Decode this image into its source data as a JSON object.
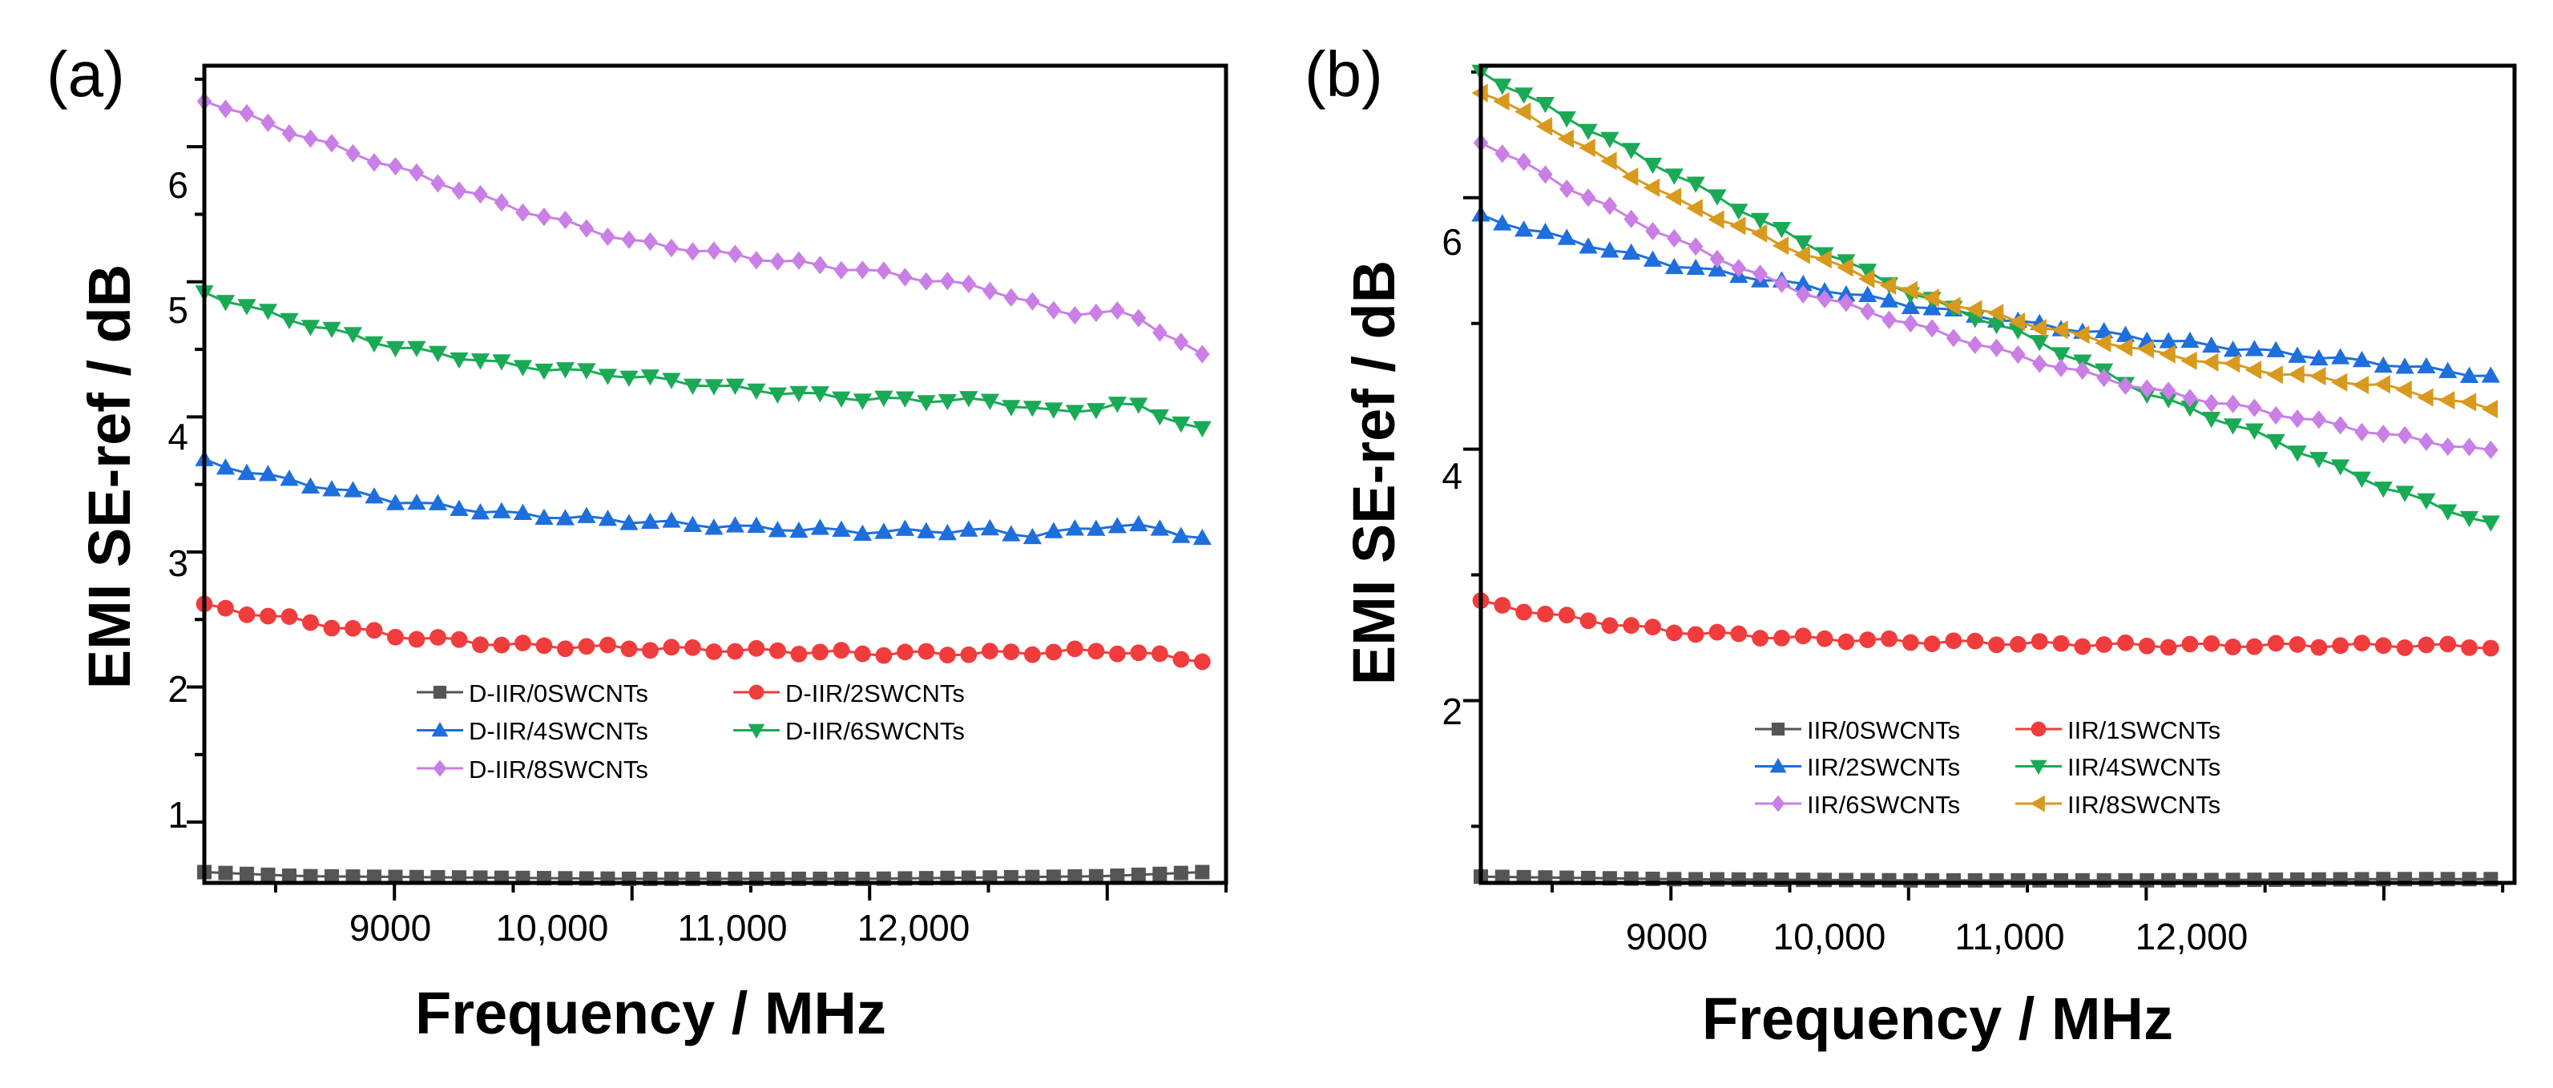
{
  "chart_data": [
    {
      "type": "line",
      "panel_label": "(a)",
      "xlabel": "Frequency / MHz",
      "ylabel": "EMI SE-ref / dB",
      "xlim": [
        8200,
        12500
      ],
      "ylim": [
        0.55,
        6.6
      ],
      "x_ticks": [
        9000,
        10000,
        11000,
        12000
      ],
      "x_tick_labels": [
        "9000",
        "10,000",
        "11,000",
        "12,000"
      ],
      "y_ticks": [
        1,
        2,
        3,
        4,
        5,
        6
      ],
      "y_tick_labels": [
        "1",
        "2",
        "3",
        "4",
        "5",
        "6"
      ],
      "x_range": [
        8200,
        12400
      ],
      "n_points": 48,
      "legend_position": "bottom-left",
      "series": [
        {
          "name": "D-IIR/0SWCNTs",
          "color": "#555555",
          "marker": "square",
          "anchors": [
            [
              8200,
              0.63
            ],
            [
              8600,
              0.6
            ],
            [
              10000,
              0.58
            ],
            [
              11000,
              0.58
            ],
            [
              12000,
              0.6
            ],
            [
              12400,
              0.63
            ]
          ]
        },
        {
          "name": "D-IIR/2SWCNTs",
          "color": "#f03c3c",
          "marker": "circle",
          "anchors": [
            [
              8200,
              2.6
            ],
            [
              8500,
              2.52
            ],
            [
              9000,
              2.38
            ],
            [
              9500,
              2.31
            ],
            [
              10000,
              2.29
            ],
            [
              10500,
              2.27
            ],
            [
              11000,
              2.25
            ],
            [
              11500,
              2.25
            ],
            [
              12000,
              2.27
            ],
            [
              12400,
              2.2
            ]
          ]
        },
        {
          "name": "D-IIR/4SWCNTs",
          "color": "#1e6fdc",
          "marker": "triangle-up",
          "anchors": [
            [
              8200,
              3.67
            ],
            [
              8500,
              3.55
            ],
            [
              9000,
              3.38
            ],
            [
              9500,
              3.28
            ],
            [
              10000,
              3.23
            ],
            [
              10500,
              3.18
            ],
            [
              11000,
              3.15
            ],
            [
              11500,
              3.16
            ],
            [
              11700,
              3.12
            ],
            [
              12000,
              3.2
            ],
            [
              12200,
              3.18
            ],
            [
              12400,
              3.1
            ]
          ]
        },
        {
          "name": "D-IIR/6SWCNTs",
          "color": "#1aaa55",
          "marker": "triangle-down",
          "anchors": [
            [
              8200,
              4.92
            ],
            [
              8500,
              4.75
            ],
            [
              9000,
              4.52
            ],
            [
              9500,
              4.38
            ],
            [
              10000,
              4.3
            ],
            [
              10500,
              4.2
            ],
            [
              11000,
              4.13
            ],
            [
              11500,
              4.12
            ],
            [
              11800,
              4.03
            ],
            [
              12100,
              4.1
            ],
            [
              12400,
              3.9
            ]
          ]
        },
        {
          "name": "D-IIR/8SWCNTs",
          "color": "#c97fe6",
          "marker": "diamond",
          "anchors": [
            [
              8200,
              6.35
            ],
            [
              8500,
              6.15
            ],
            [
              9000,
              5.85
            ],
            [
              9500,
              5.55
            ],
            [
              10000,
              5.3
            ],
            [
              10500,
              5.18
            ],
            [
              11000,
              5.08
            ],
            [
              11500,
              4.95
            ],
            [
              11800,
              4.77
            ],
            [
              12100,
              4.77
            ],
            [
              12400,
              4.45
            ]
          ]
        }
      ]
    },
    {
      "type": "line",
      "panel_label": "(b)",
      "xlabel": "Frequency / MHz",
      "ylabel": "EMI SE-ref / dB",
      "xlim": [
        8200,
        12550
      ],
      "ylim": [
        0.55,
        7.05
      ],
      "x_ticks": [
        9000,
        10000,
        11000,
        12000
      ],
      "x_tick_labels": [
        "9000",
        "10,000",
        "11,000",
        "12,000"
      ],
      "y_ticks": [
        2,
        4,
        6
      ],
      "y_tick_labels": [
        "2",
        "4",
        "6"
      ],
      "x_range": [
        8200,
        12450
      ],
      "n_points": 48,
      "legend_position": "bottom-center",
      "series": [
        {
          "name": "IIR/0SWCNTs",
          "color": "#555555",
          "marker": "square",
          "anchors": [
            [
              8200,
              0.6
            ],
            [
              9000,
              0.58
            ],
            [
              10000,
              0.57
            ],
            [
              11000,
              0.57
            ],
            [
              12000,
              0.58
            ],
            [
              12450,
              0.58
            ]
          ]
        },
        {
          "name": "IIR/1SWCNTs",
          "color": "#f03c3c",
          "marker": "circle",
          "anchors": [
            [
              8200,
              2.78
            ],
            [
              8600,
              2.65
            ],
            [
              9000,
              2.55
            ],
            [
              9500,
              2.5
            ],
            [
              10000,
              2.47
            ],
            [
              11000,
              2.44
            ],
            [
              12000,
              2.44
            ],
            [
              12450,
              2.43
            ]
          ]
        },
        {
          "name": "IIR/2SWCNTs",
          "color": "#1e6fdc",
          "marker": "triangle-up",
          "anchors": [
            [
              8200,
              5.85
            ],
            [
              8600,
              5.65
            ],
            [
              9000,
              5.47
            ],
            [
              9500,
              5.32
            ],
            [
              10000,
              5.15
            ],
            [
              10500,
              5.0
            ],
            [
              11000,
              4.88
            ],
            [
              11500,
              4.78
            ],
            [
              12000,
              4.68
            ],
            [
              12450,
              4.58
            ]
          ]
        },
        {
          "name": "IIR/4SWCNTs",
          "color": "#1aaa55",
          "marker": "triangle-down",
          "anchors": [
            [
              8200,
              7.0
            ],
            [
              8500,
              6.7
            ],
            [
              9000,
              6.2
            ],
            [
              9500,
              5.7
            ],
            [
              10000,
              5.25
            ],
            [
              10500,
              4.9
            ],
            [
              11000,
              4.45
            ],
            [
              11500,
              4.1
            ],
            [
              12000,
              3.7
            ],
            [
              12450,
              3.4
            ]
          ]
        },
        {
          "name": "IIR/6SWCNTs",
          "color": "#c97fe6",
          "marker": "diamond",
          "anchors": [
            [
              8200,
              6.45
            ],
            [
              8600,
              6.05
            ],
            [
              9000,
              5.68
            ],
            [
              9500,
              5.28
            ],
            [
              10000,
              5.0
            ],
            [
              10500,
              4.72
            ],
            [
              11000,
              4.48
            ],
            [
              11500,
              4.3
            ],
            [
              12000,
              4.12
            ],
            [
              12450,
              3.98
            ]
          ]
        },
        {
          "name": "IIR/8SWCNTs",
          "color": "#d89a1e",
          "marker": "triangle-left",
          "anchors": [
            [
              8200,
              6.85
            ],
            [
              8500,
              6.55
            ],
            [
              9000,
              6.0
            ],
            [
              9500,
              5.6
            ],
            [
              10000,
              5.25
            ],
            [
              10500,
              5.0
            ],
            [
              11000,
              4.78
            ],
            [
              11500,
              4.62
            ],
            [
              12000,
              4.5
            ],
            [
              12450,
              4.32
            ]
          ]
        }
      ]
    }
  ]
}
